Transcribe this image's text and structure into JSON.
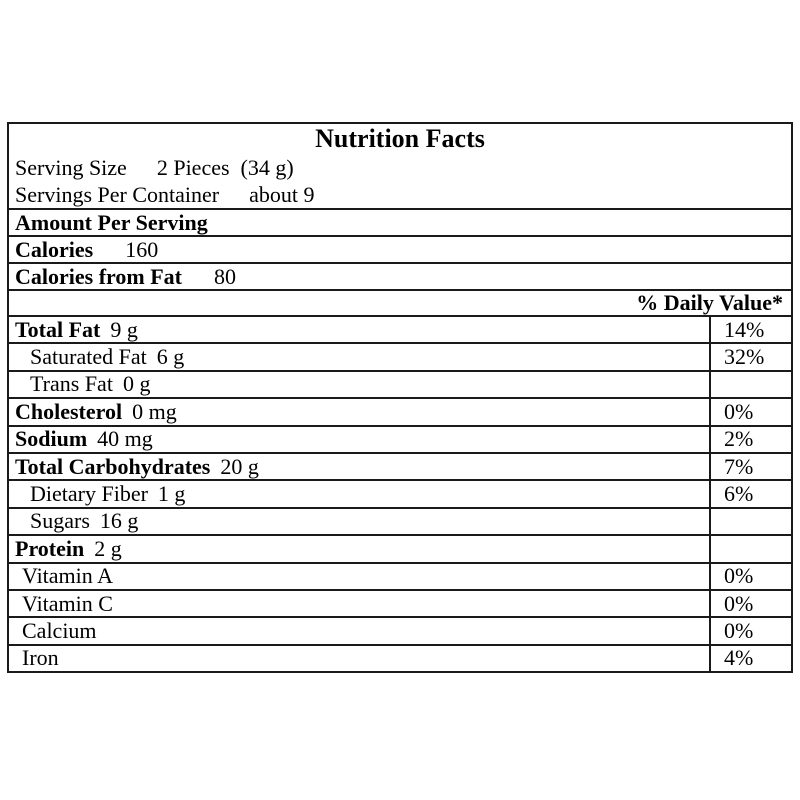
{
  "label": {
    "title": "Nutrition Facts",
    "serving_size": {
      "label": "Serving Size",
      "value": "2 Pieces  (34 g)"
    },
    "servings_per_container": {
      "label": "Servings Per Container",
      "value": "about 9"
    },
    "amount_per_serving": "Amount Per Serving",
    "calories": {
      "label": "Calories",
      "value": "160"
    },
    "calories_from_fat": {
      "label": "Calories from Fat",
      "value": "80"
    },
    "daily_value_header": "% Daily Value*",
    "nutrients": [
      {
        "name": "Total Fat",
        "amount": "9 g",
        "daily_value": "14%"
      },
      {
        "name": "Saturated Fat",
        "amount": "6 g",
        "daily_value": "32%"
      },
      {
        "name": "Trans Fat",
        "amount": "0 g",
        "daily_value": ""
      },
      {
        "name": "Cholesterol",
        "amount": "0 mg",
        "daily_value": "0%"
      },
      {
        "name": "Sodium",
        "amount": "40 mg",
        "daily_value": "2%"
      },
      {
        "name": "Total Carbohydrates",
        "amount": "20 g",
        "daily_value": "7%"
      },
      {
        "name": "Dietary Fiber",
        "amount": "1 g",
        "daily_value": "6%"
      },
      {
        "name": "Sugars",
        "amount": "16 g",
        "daily_value": ""
      },
      {
        "name": "Protein",
        "amount": "2 g",
        "daily_value": ""
      },
      {
        "name": "Vitamin A",
        "amount": "",
        "daily_value": "0%"
      },
      {
        "name": "Vitamin C",
        "amount": "",
        "daily_value": "0%"
      },
      {
        "name": "Calcium",
        "amount": "",
        "daily_value": "0%"
      },
      {
        "name": "Iron",
        "amount": "",
        "daily_value": "4%"
      }
    ]
  },
  "colors": {
    "background": "#ffffff",
    "text": "#000000",
    "border": "#1a1a1a"
  }
}
